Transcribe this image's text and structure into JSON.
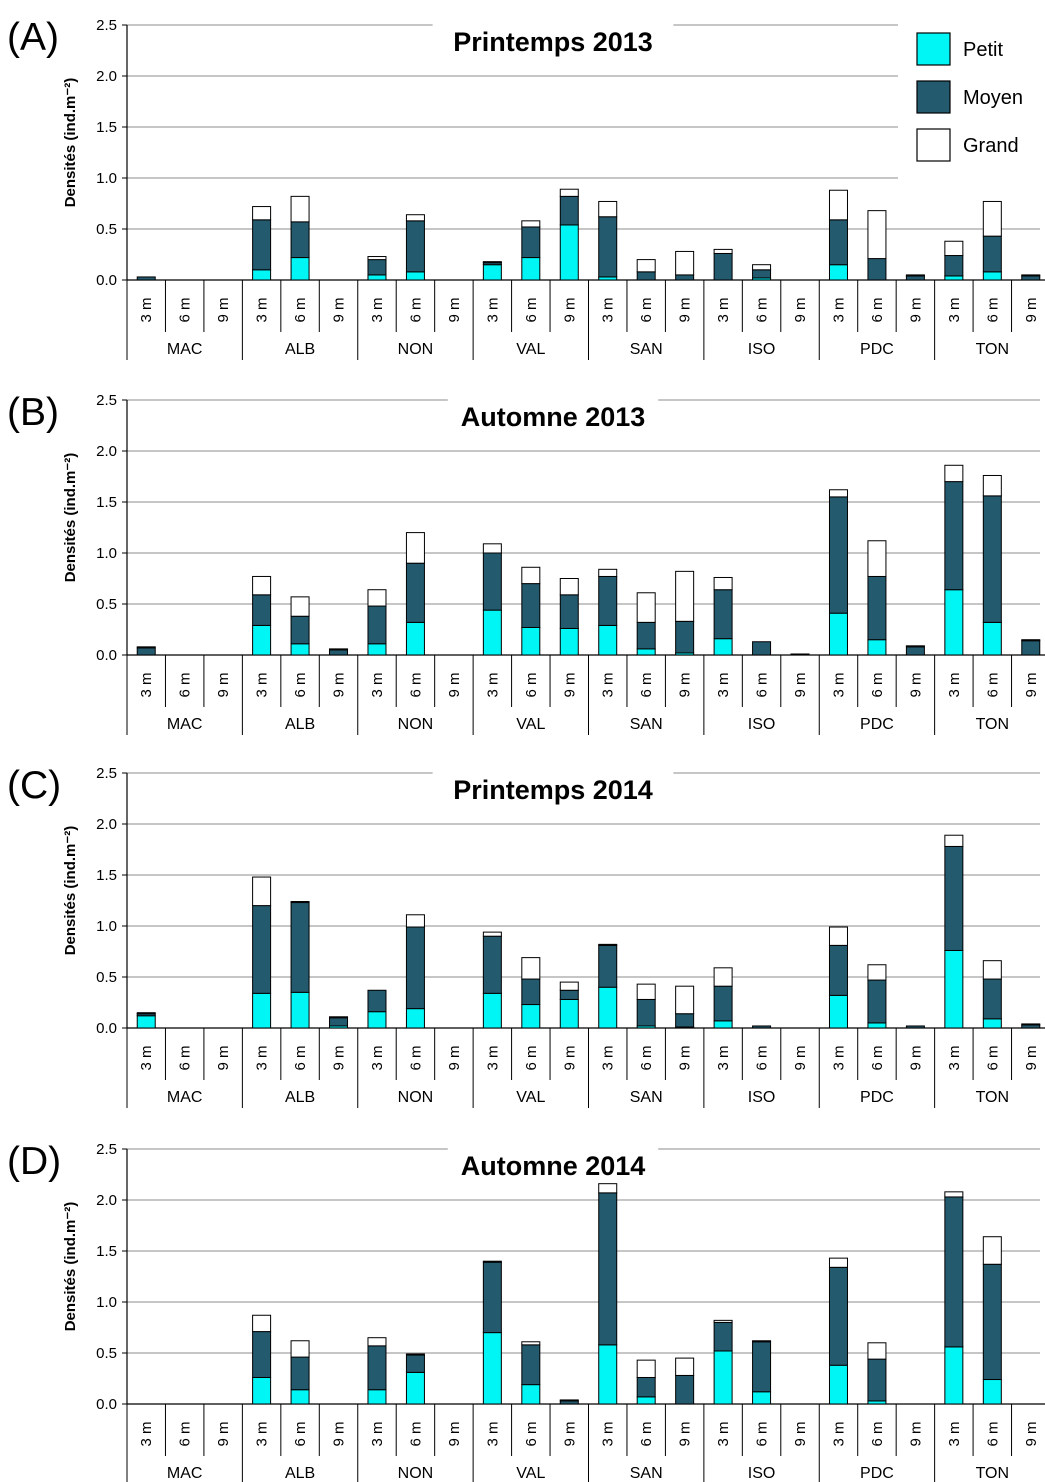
{
  "legend": [
    {
      "key": "petit",
      "label": "Petit",
      "color": "#00f5f5"
    },
    {
      "key": "moyen",
      "label": "Moyen",
      "color": "#235a6e"
    },
    {
      "key": "grand",
      "label": "Grand",
      "color": "#ffffff"
    }
  ],
  "chart_data": [
    {
      "type": "bar",
      "panel_label": "(A)",
      "title": "Printemps 2013",
      "ylabel": "Densités (ind.m⁻²)",
      "ylim": [
        0,
        2.5
      ],
      "yticks": [
        "0.0",
        "0.5",
        "1.0",
        "1.5",
        "2.0",
        "2.5"
      ],
      "sites": [
        "MAC",
        "ALB",
        "NON",
        "VAL",
        "SAN",
        "ISO",
        "PDC",
        "TON"
      ],
      "depths": [
        "3 m",
        "6 m",
        "9 m"
      ],
      "stacked": true,
      "series": [
        {
          "name": "Petit",
          "values": [
            0,
            0,
            0,
            0.1,
            0.22,
            0,
            0.05,
            0.08,
            0,
            0.15,
            0.22,
            0.54,
            0.03,
            0,
            0,
            0,
            0.02,
            0,
            0.15,
            0,
            0,
            0.04,
            0.08,
            0
          ]
        },
        {
          "name": "Moyen",
          "values": [
            0.03,
            0,
            0,
            0.49,
            0.35,
            0,
            0.15,
            0.5,
            0,
            0.02,
            0.3,
            0.28,
            0.59,
            0.08,
            0.05,
            0.26,
            0.08,
            0,
            0.44,
            0.21,
            0.04,
            0.2,
            0.35,
            0.04
          ]
        },
        {
          "name": "Grand",
          "values": [
            0,
            0,
            0,
            0.13,
            0.25,
            0,
            0.03,
            0.06,
            0,
            0.01,
            0.06,
            0.07,
            0.15,
            0.12,
            0.23,
            0.04,
            0.05,
            0,
            0.29,
            0.47,
            0.01,
            0.14,
            0.34,
            0.01
          ]
        }
      ]
    },
    {
      "type": "bar",
      "panel_label": "(B)",
      "title": "Automne 2013",
      "ylabel": "Densités (ind.m⁻²)",
      "ylim": [
        0,
        2.5
      ],
      "yticks": [
        "0.0",
        "0.5",
        "1.0",
        "1.5",
        "2.0",
        "2.5"
      ],
      "sites": [
        "MAC",
        "ALB",
        "NON",
        "VAL",
        "SAN",
        "ISO",
        "PDC",
        "TON"
      ],
      "depths": [
        "3 m",
        "6 m",
        "9 m"
      ],
      "stacked": true,
      "series": [
        {
          "name": "Petit",
          "values": [
            0,
            0,
            0,
            0.29,
            0.11,
            0,
            0.11,
            0.32,
            0,
            0.44,
            0.27,
            0.26,
            0.29,
            0.06,
            0.02,
            0.16,
            0,
            0,
            0.41,
            0.15,
            0,
            0.64,
            0.32,
            0
          ]
        },
        {
          "name": "Moyen",
          "values": [
            0.07,
            0,
            0,
            0.3,
            0.27,
            0.05,
            0.37,
            0.58,
            0,
            0.56,
            0.43,
            0.33,
            0.48,
            0.26,
            0.31,
            0.48,
            0.13,
            0.01,
            1.14,
            0.62,
            0.08,
            1.06,
            1.24,
            0.14
          ]
        },
        {
          "name": "Grand",
          "values": [
            0.01,
            0,
            0,
            0.18,
            0.19,
            0.01,
            0.16,
            0.3,
            0,
            0.09,
            0.16,
            0.16,
            0.07,
            0.29,
            0.49,
            0.12,
            0,
            0,
            0.07,
            0.35,
            0.01,
            0.16,
            0.2,
            0.01
          ]
        }
      ]
    },
    {
      "type": "bar",
      "panel_label": "(C)",
      "title": "Printemps 2014",
      "ylabel": "Densités (ind.m⁻²)",
      "ylim": [
        0,
        2.5
      ],
      "yticks": [
        "0.0",
        "0.5",
        "1.0",
        "1.5",
        "2.0",
        "2.5"
      ],
      "sites": [
        "MAC",
        "ALB",
        "NON",
        "VAL",
        "SAN",
        "ISO",
        "PDC",
        "TON"
      ],
      "depths": [
        "3 m",
        "6 m",
        "9 m"
      ],
      "stacked": true,
      "series": [
        {
          "name": "Petit",
          "values": [
            0.12,
            0,
            0,
            0.34,
            0.35,
            0.02,
            0.16,
            0.19,
            0,
            0.34,
            0.23,
            0.28,
            0.4,
            0.02,
            0.01,
            0.07,
            0,
            0,
            0.32,
            0.05,
            0,
            0.76,
            0.09,
            0
          ]
        },
        {
          "name": "Moyen",
          "values": [
            0.02,
            0,
            0,
            0.86,
            0.88,
            0.08,
            0.21,
            0.8,
            0,
            0.56,
            0.25,
            0.09,
            0.41,
            0.26,
            0.13,
            0.34,
            0.02,
            0,
            0.49,
            0.42,
            0.02,
            1.02,
            0.39,
            0.03
          ]
        },
        {
          "name": "Grand",
          "values": [
            0.01,
            0,
            0,
            0.28,
            0.01,
            0.01,
            0,
            0.12,
            0,
            0.04,
            0.21,
            0.08,
            0.01,
            0.15,
            0.27,
            0.18,
            0,
            0,
            0.18,
            0.15,
            0,
            0.11,
            0.18,
            0.01
          ]
        }
      ]
    },
    {
      "type": "bar",
      "panel_label": "(D)",
      "title": "Automne 2014",
      "ylabel": "Densités (ind.m⁻²)",
      "ylim": [
        0,
        2.5
      ],
      "yticks": [
        "0.0",
        "0.5",
        "1.0",
        "1.5",
        "2.0",
        "2.5"
      ],
      "sites": [
        "MAC",
        "ALB",
        "NON",
        "VAL",
        "SAN",
        "ISO",
        "PDC",
        "TON"
      ],
      "depths": [
        "3 m",
        "6 m",
        "9 m"
      ],
      "stacked": true,
      "series": [
        {
          "name": "Petit",
          "values": [
            0,
            0,
            0,
            0.26,
            0.14,
            0,
            0.14,
            0.31,
            0,
            0.7,
            0.19,
            0,
            0.58,
            0.07,
            0,
            0.52,
            0.12,
            0,
            0.38,
            0.03,
            0,
            0.56,
            0.24,
            0
          ]
        },
        {
          "name": "Moyen",
          "values": [
            0,
            0,
            0,
            0.45,
            0.32,
            0,
            0.43,
            0.17,
            0,
            0.69,
            0.39,
            0.03,
            1.49,
            0.19,
            0.28,
            0.28,
            0.49,
            0,
            0.96,
            0.41,
            0,
            1.47,
            1.13,
            0
          ]
        },
        {
          "name": "Grand",
          "values": [
            0,
            0,
            0,
            0.16,
            0.16,
            0,
            0.08,
            0.01,
            0,
            0.01,
            0.03,
            0.01,
            0.09,
            0.17,
            0.17,
            0.02,
            0.01,
            0,
            0.09,
            0.16,
            0,
            0.05,
            0.27,
            0
          ]
        }
      ]
    }
  ]
}
